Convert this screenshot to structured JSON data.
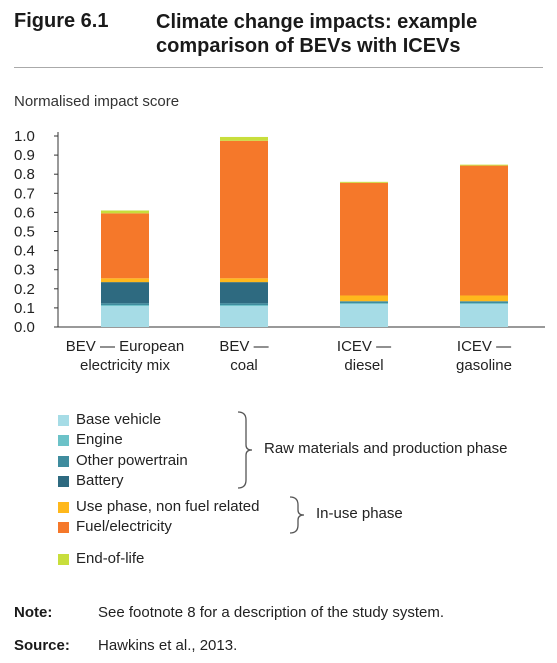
{
  "figure": {
    "number": "Figure 6.1",
    "title_line1": "Climate change impacts: example",
    "title_line2": "comparison of BEVs with ICEVs"
  },
  "chart_data": {
    "type": "bar",
    "stacked": true,
    "ylabel": "Normalised impact score",
    "ylim": [
      0,
      1.0
    ],
    "yticks": [
      "0.0",
      "0.1",
      "0.2",
      "0.3",
      "0.4",
      "0.5",
      "0.6",
      "0.7",
      "0.8",
      "0.9",
      "1.0"
    ],
    "categories": [
      [
        "BEV — European",
        "electricity mix"
      ],
      [
        "BEV —",
        "coal"
      ],
      [
        "ICEV —",
        "diesel"
      ],
      [
        "ICEV —",
        "gasoline"
      ]
    ],
    "series": [
      {
        "name": "Base vehicle",
        "color": "#a6dce6",
        "values": [
          0.11,
          0.11,
          0.12,
          0.12
        ]
      },
      {
        "name": "Engine",
        "color": "#6cc2c8",
        "values": [
          0.005,
          0.005,
          0.005,
          0.005
        ]
      },
      {
        "name": "Other powertrain",
        "color": "#3f8c9e",
        "values": [
          0.01,
          0.01,
          0.01,
          0.01
        ]
      },
      {
        "name": "Battery",
        "color": "#2e6a80",
        "values": [
          0.11,
          0.11,
          0.0,
          0.0
        ]
      },
      {
        "name": "Use phase, non fuel related",
        "color": "#ffb81c",
        "values": [
          0.02,
          0.02,
          0.03,
          0.03
        ]
      },
      {
        "name": "Fuel/electricity",
        "color": "#f5782a",
        "values": [
          0.34,
          0.72,
          0.59,
          0.68
        ]
      },
      {
        "name": "End-of-life",
        "color": "#c8de3c",
        "values": [
          0.015,
          0.02,
          0.005,
          0.005
        ]
      }
    ],
    "legend_groups": [
      {
        "label": "Raw materials and production phase",
        "members": [
          0,
          1,
          2,
          3
        ]
      },
      {
        "label": "In-use phase",
        "members": [
          4,
          5
        ]
      }
    ],
    "legend_placement": "bottom"
  },
  "note": {
    "label": "Note:",
    "text": "See footnote 8 for a description of the study system."
  },
  "source": {
    "label": "Source:",
    "text": "Hawkins et al., 2013."
  }
}
